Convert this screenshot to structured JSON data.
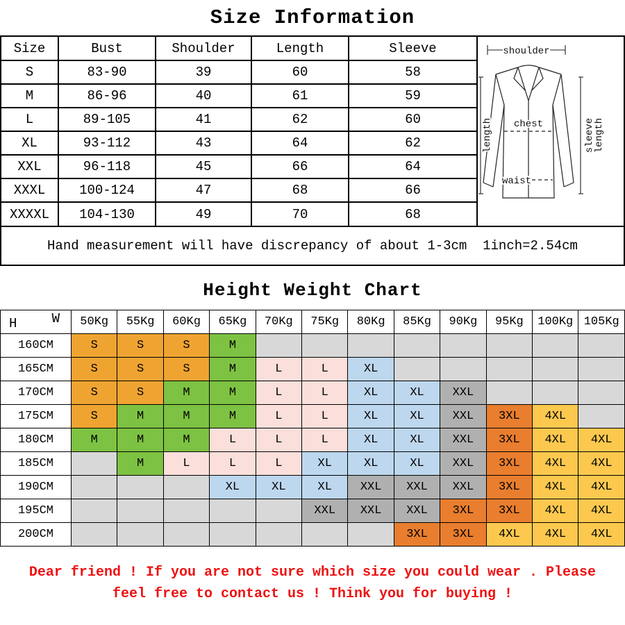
{
  "chart_data": [
    {
      "type": "table",
      "title": "Size Information",
      "columns": [
        "Size",
        "Bust",
        "Shoulder",
        "Length",
        "Sleeve"
      ],
      "rows": [
        [
          "S",
          "83-90",
          "39",
          "60",
          "58"
        ],
        [
          "M",
          "86-96",
          "40",
          "61",
          "59"
        ],
        [
          "L",
          "89-105",
          "41",
          "62",
          "60"
        ],
        [
          "XL",
          "93-112",
          "43",
          "64",
          "62"
        ],
        [
          "XXL",
          "96-118",
          "45",
          "66",
          "64"
        ],
        [
          "XXXL",
          "100-124",
          "47",
          "68",
          "66"
        ],
        [
          "XXXXL",
          "104-130",
          "49",
          "70",
          "68"
        ]
      ],
      "note": "Hand measurement will have discrepancy of about 1-3cm  1inch=2.54cm"
    },
    {
      "type": "heatmap",
      "title": "Height Weight Chart",
      "y_label": "H",
      "x_label": "W",
      "x": [
        "50Kg",
        "55Kg",
        "60Kg",
        "65Kg",
        "70Kg",
        "75Kg",
        "80Kg",
        "85Kg",
        "90Kg",
        "95Kg",
        "100Kg",
        "105Kg"
      ],
      "y": [
        "160CM",
        "165CM",
        "170CM",
        "175CM",
        "180CM",
        "185CM",
        "190CM",
        "195CM",
        "200CM"
      ],
      "values": [
        [
          "S",
          "S",
          "S",
          "M",
          "",
          "",
          "",
          "",
          "",
          "",
          "",
          ""
        ],
        [
          "S",
          "S",
          "S",
          "M",
          "L",
          "L",
          "XL",
          "",
          "",
          "",
          "",
          ""
        ],
        [
          "S",
          "S",
          "M",
          "M",
          "L",
          "L",
          "XL",
          "XL",
          "XXL",
          "",
          "",
          ""
        ],
        [
          "S",
          "M",
          "M",
          "M",
          "L",
          "L",
          "XL",
          "XL",
          "XXL",
          "3XL",
          "4XL",
          ""
        ],
        [
          "M",
          "M",
          "M",
          "L",
          "L",
          "L",
          "XL",
          "XL",
          "XXL",
          "3XL",
          "4XL",
          "4XL"
        ],
        [
          "",
          "M",
          "L",
          "L",
          "L",
          "XL",
          "XL",
          "XL",
          "XXL",
          "3XL",
          "4XL",
          "4XL"
        ],
        [
          "",
          "",
          "",
          "XL",
          "XL",
          "XL",
          "XXL",
          "XXL",
          "XXL",
          "3XL",
          "4XL",
          "4XL"
        ],
        [
          "",
          "",
          "",
          "",
          "",
          "XXL",
          "XXL",
          "XXL",
          "3XL",
          "3XL",
          "4XL",
          "4XL"
        ],
        [
          "",
          "",
          "",
          "",
          "",
          "",
          "",
          "3XL",
          "3XL",
          "4XL",
          "4XL",
          "4XL"
        ]
      ],
      "cell_colors": {
        "S": "#efa432",
        "M": "#7dc242",
        "L": "#fbdfda",
        "XL": "#bdd7ee",
        "XXL": "#b0b0b0",
        "3XL": "#e87e2e",
        "4XL": "#fcc84e",
        "empty": "#d8d8d8"
      },
      "legend_position": "none",
      "grid": true
    }
  ],
  "diagram": {
    "shoulder": "shoulder",
    "chest": "chest",
    "waist": "waist",
    "length": "length",
    "sleeve_length": [
      "sleeve",
      "length"
    ]
  },
  "footer": {
    "line1": "Dear friend ! If you are not sure which size you could wear . Please",
    "line2": "feel free to contact us ! Think you for buying !",
    "color": "#ee1111"
  }
}
